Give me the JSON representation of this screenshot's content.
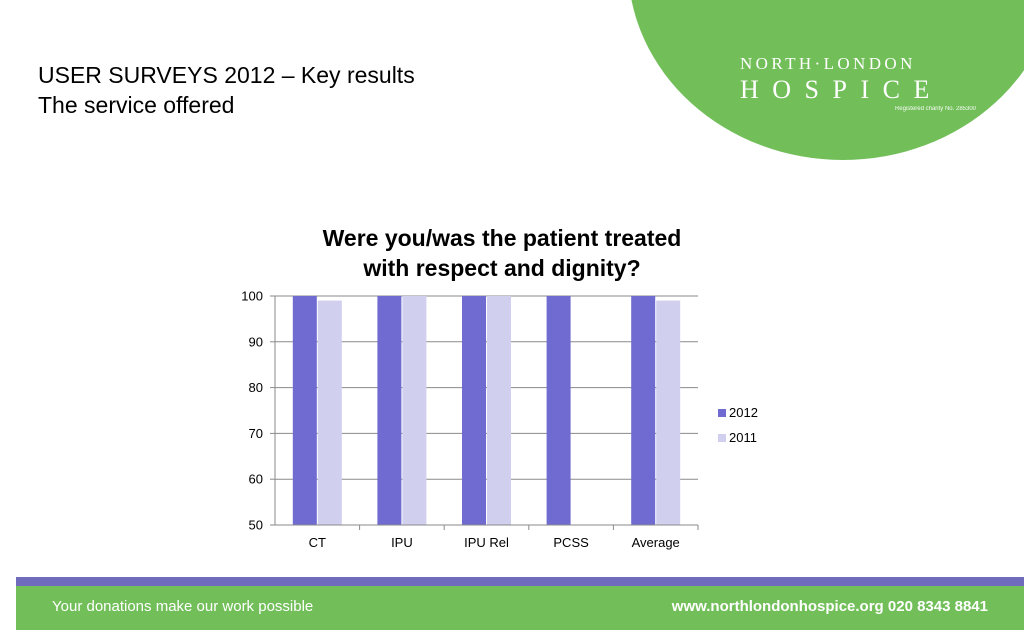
{
  "slide": {
    "title_line1": "USER SURVEYS 2012 – Key results",
    "title_line2": "The service offered"
  },
  "logo": {
    "line1": "NORTH·LONDON",
    "line2": "HOSPICE",
    "charity": "Registered charity No. 285300"
  },
  "footer": {
    "tagline": "Your donations make our work possible",
    "contact": "www.northlondonhospice.org  020 8343 8841"
  },
  "colors": {
    "brand_green": "#72bf5a",
    "stripe_purple": "#6f6bbd",
    "series_2012": "#6f6bd0",
    "series_2011": "#d0cfee"
  },
  "chart_data": {
    "type": "bar",
    "title_line1": "Were you/was the patient treated",
    "title_line2": "with respect and dignity?",
    "categories": [
      "CT",
      "IPU",
      "IPU Rel",
      "PCSS",
      "Average"
    ],
    "series": [
      {
        "name": "2012",
        "values": [
          100,
          100,
          100,
          100,
          100
        ]
      },
      {
        "name": "2011",
        "values": [
          99,
          100,
          100,
          null,
          99
        ]
      }
    ],
    "ylim": [
      50,
      100
    ],
    "yticks": [
      50,
      60,
      70,
      80,
      90,
      100
    ],
    "grid": true,
    "legend": "right"
  }
}
